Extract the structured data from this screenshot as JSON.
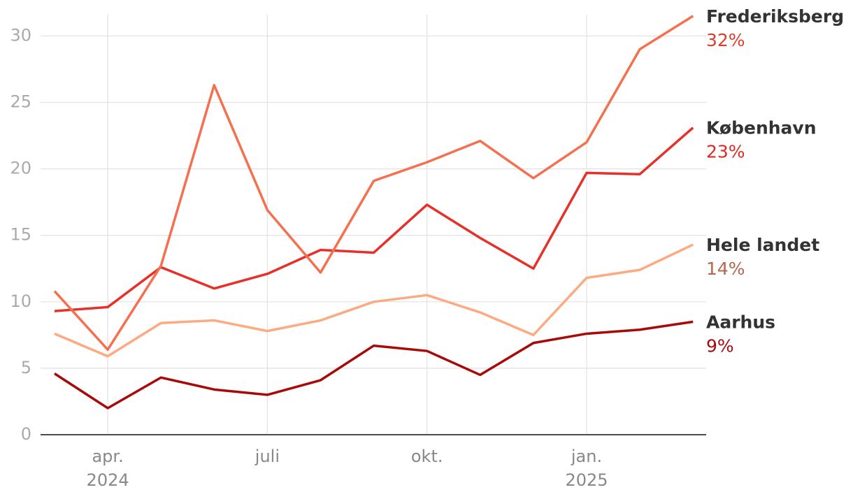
{
  "chart_data": {
    "type": "line",
    "categories": [
      null,
      "apr.",
      null,
      null,
      "juli",
      null,
      null,
      "okt.",
      null,
      null,
      "jan.",
      null,
      null
    ],
    "year_labels": [
      null,
      "2024",
      null,
      null,
      null,
      null,
      null,
      null,
      null,
      null,
      "2025",
      null,
      null
    ],
    "ylim": [
      0,
      31.6
    ],
    "yticks": [
      0,
      5,
      10,
      15,
      20,
      25,
      30
    ],
    "grid": true,
    "series": [
      {
        "name": "Frederiksberg",
        "color": "#f4704f",
        "label_color": "#e23b2b",
        "values": [
          10.8,
          6.4,
          12.7,
          26.3,
          16.9,
          12.2,
          19.1,
          20.5,
          22.1,
          19.3,
          22.0,
          29.0,
          31.5
        ],
        "value_labels": [
          null,
          null,
          null,
          null,
          null,
          null,
          null,
          null,
          null,
          null,
          null,
          null,
          "32%"
        ]
      },
      {
        "name": "København",
        "color": "#e6302a",
        "label_color": "#dc2a22",
        "values": [
          9.3,
          9.6,
          12.6,
          11.0,
          12.1,
          13.9,
          13.7,
          17.3,
          14.8,
          12.5,
          19.7,
          19.6,
          23.1
        ],
        "value_labels": [
          null,
          null,
          null,
          null,
          null,
          null,
          null,
          null,
          null,
          null,
          null,
          null,
          "23%"
        ]
      },
      {
        "name": "Hele landet",
        "color": "#fcaa82",
        "label_color": "#b8654a",
        "values": [
          7.6,
          5.9,
          8.4,
          8.6,
          7.8,
          8.6,
          10.0,
          10.5,
          9.2,
          7.5,
          11.8,
          12.4,
          14.3
        ],
        "value_labels": [
          null,
          null,
          null,
          null,
          null,
          null,
          null,
          null,
          null,
          null,
          null,
          null,
          "14%"
        ]
      },
      {
        "name": "Aarhus",
        "color": "#a80a0a",
        "label_color": "#a80a0a",
        "values": [
          4.6,
          2.0,
          4.3,
          3.4,
          3.0,
          4.1,
          6.7,
          6.3,
          4.5,
          6.9,
          7.6,
          7.9,
          8.5
        ],
        "value_labels": [
          null,
          null,
          null,
          null,
          null,
          null,
          null,
          null,
          null,
          null,
          null,
          null,
          "9%"
        ]
      }
    ]
  }
}
